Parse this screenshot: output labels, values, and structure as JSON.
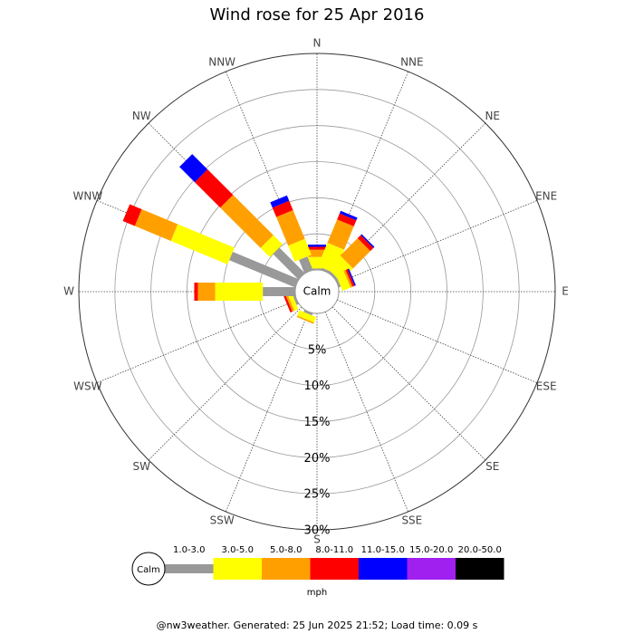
{
  "chart_data": {
    "type": "windrose",
    "title": "Wind rose for 25 Apr 2016",
    "categories": [
      "N",
      "NNE",
      "NE",
      "ENE",
      "E",
      "ESE",
      "SE",
      "SSE",
      "S",
      "SSW",
      "SW",
      "WSW",
      "W",
      "WNW",
      "NW",
      "NNW"
    ],
    "calm_label": "Calm",
    "rlim": [
      0,
      30
    ],
    "rticks": [
      {
        "value": 5,
        "label": "5%"
      },
      {
        "value": 10,
        "label": "10%"
      },
      {
        "value": 15,
        "label": "15%"
      },
      {
        "value": 20,
        "label": "20%"
      },
      {
        "value": 25,
        "label": "25%"
      },
      {
        "value": 30,
        "label": "30%"
      }
    ],
    "unit": "mph",
    "series": [
      {
        "name": "1.0-3.0",
        "color": "#999999",
        "values": [
          0.2,
          0.3,
          0.3,
          0.3,
          0,
          0,
          0,
          0,
          0,
          0.3,
          0,
          0.3,
          4.5,
          9.9,
          5.0,
          2.0
        ]
      },
      {
        "name": "3.0-5.0",
        "color": "#ffff00",
        "values": [
          1.6,
          3.5,
          2.5,
          1.2,
          0,
          0,
          0,
          0,
          0,
          0.8,
          0,
          0.6,
          6.6,
          8.5,
          1.8,
          2.4
        ]
      },
      {
        "name": "5.0-8.0",
        "color": "#ffa000",
        "values": [
          1.0,
          3.5,
          3.4,
          0.3,
          0,
          0,
          0,
          0,
          0,
          0.2,
          0,
          0.3,
          2.4,
          5.4,
          7.9,
          4.3
        ]
      },
      {
        "name": "8.0-11.0",
        "color": "#ff0000",
        "values": [
          0.4,
          0.9,
          0.6,
          0.3,
          0,
          0,
          0,
          0,
          0,
          0,
          0,
          0.3,
          0.5,
          1.8,
          5.0,
          1.4
        ]
      },
      {
        "name": "11.0-15.0",
        "color": "#0000ff",
        "values": [
          0.3,
          0.4,
          0.2,
          0.2,
          0,
          0,
          0,
          0,
          0,
          0,
          0,
          0,
          0,
          0,
          3.0,
          0.8
        ]
      },
      {
        "name": "15.0-20.0",
        "color": "#a020f0",
        "values": [
          0,
          0,
          0,
          0,
          0,
          0,
          0,
          0,
          0,
          0,
          0,
          0,
          0,
          0,
          0,
          0
        ]
      },
      {
        "name": "20.0-50.0",
        "color": "#000000",
        "values": [
          0,
          0,
          0,
          0,
          0,
          0,
          0,
          0,
          0,
          0,
          0,
          0,
          0,
          0,
          0,
          0
        ]
      }
    ],
    "footer": "@nw3weather. Generated: 25 Jun 2025 21:52; Load time: 0.09 s"
  }
}
